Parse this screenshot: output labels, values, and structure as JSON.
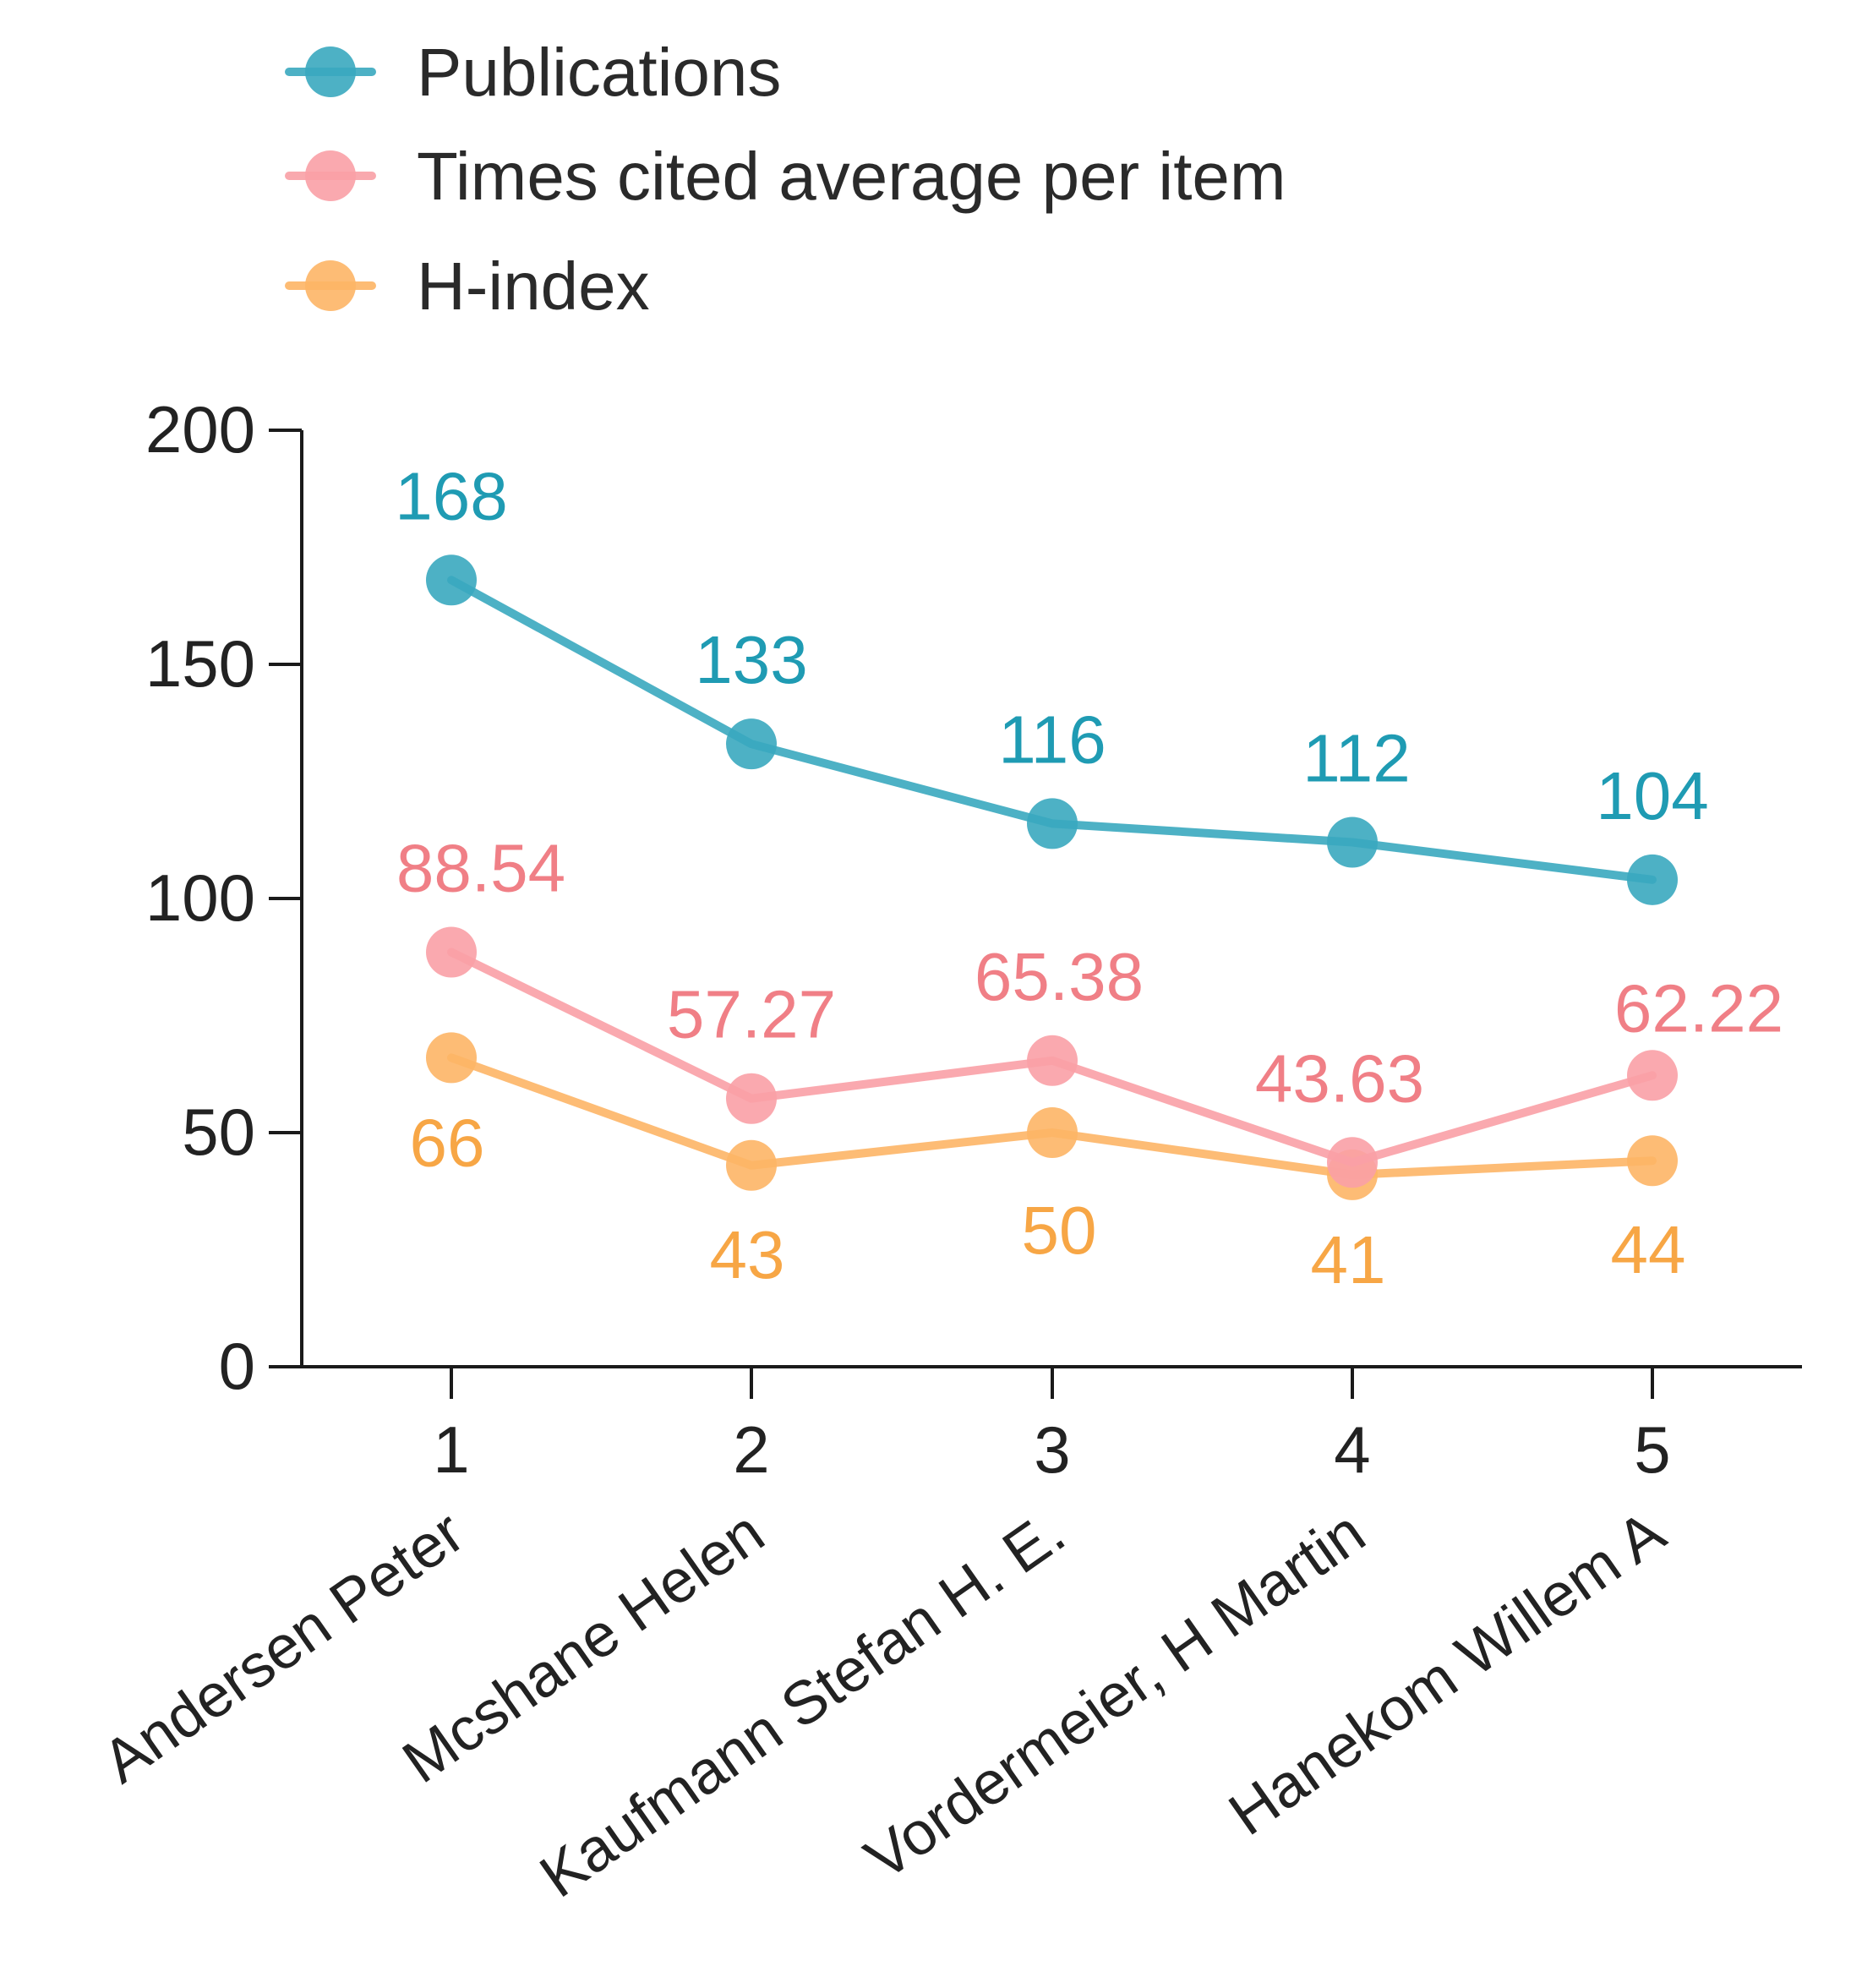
{
  "chart_data": {
    "type": "line",
    "title": "",
    "xlabel": "",
    "ylabel": "",
    "x": [
      1,
      2,
      3,
      4,
      5
    ],
    "x_tick_labels": [
      "1",
      "2",
      "3",
      "4",
      "5"
    ],
    "categories": [
      "Andersen Peter",
      "Mcshane Helen",
      "Kaufmann Stefan H. E.",
      "Vordermeier, H Martin",
      "Hanekom Willem A"
    ],
    "ylim": [
      0,
      200
    ],
    "y_ticks": [
      "0",
      "50",
      "100",
      "150",
      "200"
    ],
    "legend_position": "top-left",
    "grid": false,
    "series": [
      {
        "name": "Publications",
        "color": "#3aa9bf",
        "label_color": "#1f9bb3",
        "values": [
          168,
          133,
          116,
          112,
          104
        ],
        "labels": [
          "168",
          "133",
          "116",
          "112",
          "104"
        ],
        "label_position": "above"
      },
      {
        "name": "Times cited average per item",
        "color": "#f9a0a6",
        "label_color": "#f07f86",
        "values": [
          88.54,
          57.27,
          65.38,
          43.63,
          62.22
        ],
        "labels": [
          "88.54",
          "57.27",
          "65.38",
          "43.63",
          "62.22"
        ],
        "label_position": "above"
      },
      {
        "name": "H-index",
        "color": "#fdb566",
        "label_color": "#f7a645",
        "values": [
          66,
          43,
          50,
          41,
          44
        ],
        "labels": [
          "66",
          "43",
          "50",
          "41",
          "44"
        ],
        "label_position": "below"
      }
    ]
  }
}
